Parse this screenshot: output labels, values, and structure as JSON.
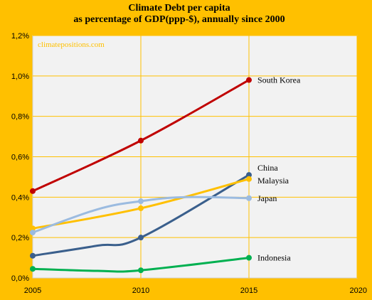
{
  "chart_data": {
    "type": "line",
    "title": "Climate Debt per capita",
    "subtitle": "as percentage of GDP(ppp-$), annually since 2000",
    "watermark": "climatepositions.com",
    "xlabel": "",
    "ylabel": "",
    "xlim": [
      2005,
      2020
    ],
    "ylim": [
      0,
      1.2
    ],
    "x_ticks": [
      "2005",
      "2010",
      "2015",
      "2020"
    ],
    "y_ticks": [
      "0,0%",
      "0,2%",
      "0,4%",
      "0,6%",
      "0,8%",
      "1,0%",
      "1,2%"
    ],
    "grid": true,
    "series": [
      {
        "name": "South Korea",
        "color": "#C00000",
        "x": [
          2005,
          2010,
          2015
        ],
        "y": [
          0.43,
          0.68,
          0.98
        ]
      },
      {
        "name": "China",
        "color": "#3A5F8C",
        "x": [
          2005,
          2008,
          2010,
          2015
        ],
        "y": [
          0.11,
          0.16,
          0.2,
          0.51
        ]
      },
      {
        "name": "Malaysia",
        "color": "#FFC000",
        "x": [
          2005,
          2010,
          2015
        ],
        "y": [
          0.245,
          0.345,
          0.49
        ]
      },
      {
        "name": "Japan",
        "color": "#9BBBE0",
        "x": [
          2005,
          2008,
          2010,
          2012,
          2015
        ],
        "y": [
          0.225,
          0.34,
          0.38,
          0.4,
          0.395
        ]
      },
      {
        "name": "Indonesia",
        "color": "#00B050",
        "x": [
          2005,
          2008,
          2010,
          2015
        ],
        "y": [
          0.045,
          0.035,
          0.038,
          0.1
        ]
      }
    ]
  }
}
